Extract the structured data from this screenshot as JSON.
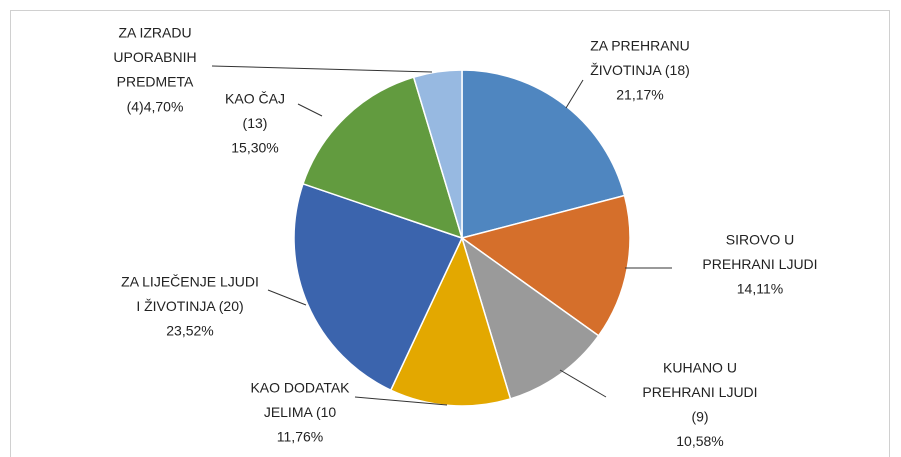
{
  "chart_data": {
    "type": "pie",
    "categories": [
      [
        "ZA PREHRANU",
        "ŽIVOTINJA (18)"
      ],
      [
        "SIROVO U",
        "PREHRANI LJUDI"
      ],
      [
        "KUHANO U",
        "PREHRANI LJUDI",
        "(9)"
      ],
      [
        "KAO DODATAK",
        "JELIMA (10"
      ],
      [
        "ZA LIJEČENJE LJUDI",
        "I ŽIVOTINJA (20)"
      ],
      [
        "KAO ČAJ",
        "(13)"
      ],
      [
        "ZA IZRADU",
        "UPORABNIH",
        "PREDMETA",
        "(4)"
      ]
    ],
    "values": [
      21.17,
      14.11,
      10.58,
      11.76,
      23.52,
      15.3,
      4.7
    ],
    "value_labels": [
      "21,17%",
      "14,11%",
      "10,58%",
      "11,76%",
      "23,52%",
      "15,30%",
      "4,70%"
    ],
    "colors": [
      "#4f86c0",
      "#d56f2b",
      "#9a9a9a",
      "#e3a800",
      "#3b64ad",
      "#629b3f",
      "#97b9e1"
    ]
  }
}
